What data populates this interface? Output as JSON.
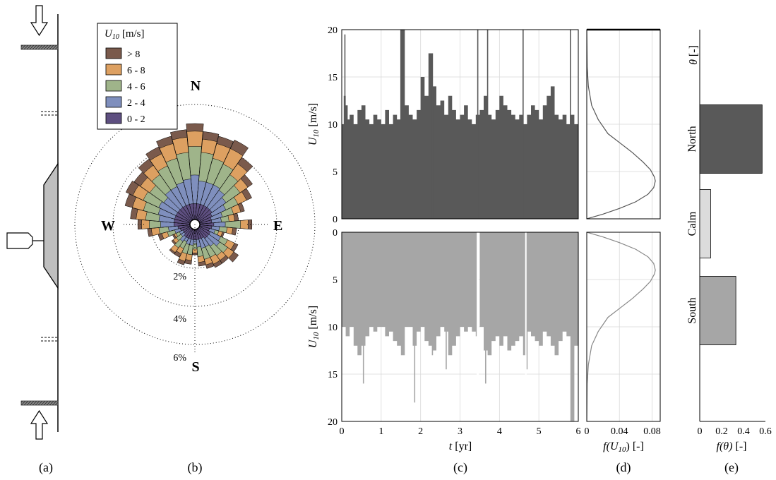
{
  "panel_labels": [
    "(a)",
    "(b)",
    "(c)",
    "(d)",
    "(e)"
  ],
  "colors": {
    "dark_series": "#595959",
    "light_series": "#a6a6a6",
    "bin_0_2": "#5e4f80",
    "bin_2_4": "#7f8fbd",
    "bin_4_6": "#9fb48a",
    "bin_6_8": "#dda061",
    "bin_gt8": "#7a5a4c",
    "north_bar": "#595959",
    "calm_bar": "#dcdcdc",
    "south_bar": "#a6a6a6"
  },
  "chart_data": [
    {
      "panel": "(a)",
      "type": "diagram",
      "icons": [
        "arrow-down-icon",
        "arrow-up-icon",
        "house-icon",
        "jetty-hatch-icon"
      ]
    },
    {
      "panel": "(b)",
      "type": "wind-rose",
      "legend_title": "U10 [m/s]",
      "legend_title_main": "U",
      "legend_title_sub": "10",
      "legend_title_unit": "[m/s]",
      "legend": [
        "> 8",
        "6 - 8",
        "4 - 6",
        "2 - 4",
        "0 - 2"
      ],
      "direction_labels": [
        "N",
        "E",
        "S",
        "W"
      ],
      "ring_labels": [
        "2%",
        "4%",
        "6%"
      ],
      "rings_percent": [
        2,
        4,
        6
      ],
      "sector_count": 36,
      "sectors_cumulative_percent": [
        [
          0.8,
          2.3,
          3.8,
          4.6,
          5.0
        ],
        [
          0.8,
          2.0,
          3.5,
          4.2,
          4.6
        ],
        [
          0.8,
          2.0,
          3.3,
          4.1,
          4.5
        ],
        [
          0.8,
          2.0,
          3.2,
          4.1,
          4.6
        ],
        [
          0.8,
          1.9,
          2.9,
          3.6,
          4.0
        ],
        [
          0.8,
          1.7,
          2.6,
          3.1,
          3.4
        ],
        [
          0.7,
          1.5,
          2.2,
          2.7,
          3.0
        ],
        [
          0.6,
          1.2,
          1.8,
          2.2,
          2.4
        ],
        [
          0.6,
          1.1,
          1.5,
          1.8,
          2.0
        ],
        [
          0.7,
          1.3,
          2.1,
          2.5,
          2.7
        ],
        [
          0.6,
          1.0,
          1.4,
          1.7,
          1.9
        ],
        [
          0.5,
          0.8,
          1.0,
          1.2,
          1.3
        ],
        [
          0.6,
          1.2,
          1.6,
          2.0,
          2.2
        ],
        [
          0.6,
          1.3,
          1.8,
          2.2,
          2.5
        ],
        [
          0.6,
          1.1,
          1.7,
          2.0,
          2.2
        ],
        [
          0.5,
          1.0,
          1.6,
          2.0,
          2.2
        ],
        [
          0.5,
          1.0,
          1.6,
          1.9,
          2.1
        ],
        [
          0.5,
          0.9,
          1.4,
          1.7,
          1.9
        ],
        [
          0.5,
          0.7,
          1.0,
          1.2,
          1.3
        ],
        [
          0.5,
          0.8,
          1.3,
          1.6,
          1.8
        ],
        [
          0.5,
          0.8,
          1.3,
          1.7,
          1.9
        ],
        [
          0.5,
          0.7,
          1.1,
          1.4,
          1.6
        ],
        [
          0.5,
          0.8,
          1.2,
          1.5,
          1.6
        ],
        [
          0.4,
          0.6,
          0.9,
          1.1,
          1.2
        ],
        [
          0.4,
          0.6,
          0.8,
          0.9,
          1.0
        ],
        [
          0.5,
          0.8,
          1.2,
          1.5,
          1.7
        ],
        [
          0.6,
          1.1,
          1.6,
          2.0,
          2.2
        ],
        [
          0.8,
          1.5,
          2.1,
          2.5,
          2.7
        ],
        [
          0.8,
          1.6,
          2.3,
          2.8,
          3.1
        ],
        [
          0.8,
          1.7,
          2.5,
          3.1,
          3.5
        ],
        [
          0.8,
          1.8,
          2.7,
          3.3,
          3.7
        ],
        [
          0.8,
          1.7,
          2.6,
          3.2,
          3.6
        ],
        [
          0.8,
          1.9,
          2.9,
          3.5,
          3.9
        ],
        [
          0.8,
          1.9,
          3.1,
          3.8,
          4.2
        ],
        [
          0.8,
          2.0,
          3.3,
          4.1,
          4.5
        ],
        [
          0.8,
          2.1,
          3.5,
          4.3,
          4.7
        ]
      ]
    },
    {
      "panel": "(c)",
      "type": "bar",
      "xlabel_var": "t",
      "xlabel_unit": "[yr]",
      "xlim": [
        0,
        6
      ],
      "xticks": [
        "0",
        "1",
        "2",
        "3",
        "4",
        "5",
        "6"
      ],
      "top": {
        "ylabel_main": "U",
        "ylabel_sub": "10",
        "ylabel_unit": "[m/s]",
        "ylim": [
          0,
          20
        ],
        "yticks": [
          "0",
          "5",
          "10",
          "15",
          "20"
        ],
        "envelope_x": [
          0,
          0.05,
          0.1,
          0.15,
          0.2,
          0.3,
          0.4,
          0.5,
          0.6,
          0.7,
          0.8,
          0.9,
          1.0,
          1.1,
          1.2,
          1.3,
          1.4,
          1.5,
          1.6,
          1.7,
          1.8,
          1.9,
          2.0,
          2.1,
          2.2,
          2.3,
          2.4,
          2.5,
          2.6,
          2.7,
          2.8,
          2.9,
          3.0,
          3.1,
          3.2,
          3.3,
          3.4,
          3.5,
          3.6,
          3.7,
          3.8,
          3.9,
          4.0,
          4.1,
          4.2,
          4.3,
          4.4,
          4.5,
          4.6,
          4.7,
          4.8,
          4.9,
          5.0,
          5.1,
          5.2,
          5.3,
          5.4,
          5.5,
          5.6,
          5.7,
          5.8,
          5.9,
          6.0
        ],
        "envelope_y": [
          10,
          13,
          12,
          10.5,
          11,
          10,
          11.5,
          12,
          10.5,
          10,
          11,
          10.5,
          10,
          11.5,
          10,
          11,
          10.5,
          20,
          12,
          11,
          10.5,
          11.5,
          15,
          13,
          17.5,
          14,
          12,
          12.5,
          11,
          13,
          11.5,
          10.5,
          11,
          12,
          10.5,
          10,
          11,
          11.5,
          13,
          11,
          10.5,
          11.5,
          13,
          12,
          11.5,
          11,
          10.5,
          11,
          10,
          11,
          12,
          11.5,
          10.5,
          12,
          13,
          14,
          11,
          10.5,
          11,
          10,
          11,
          10,
          13
        ],
        "spike_x": [
          0.08,
          1.5,
          2.3,
          3.45,
          3.7,
          4.6,
          5.8
        ],
        "spike_y": [
          19.5,
          20,
          17.5,
          20,
          20,
          20,
          20
        ]
      },
      "bottom": {
        "ylabel_main": "U",
        "ylabel_sub": "10",
        "ylabel_unit": "[m/s]",
        "ylim": [
          0,
          20
        ],
        "yticks": [
          "0",
          "5",
          "10",
          "15",
          "20"
        ],
        "envelope_x": [
          0,
          0.1,
          0.2,
          0.3,
          0.4,
          0.5,
          0.6,
          0.7,
          0.8,
          0.9,
          1.0,
          1.1,
          1.2,
          1.3,
          1.4,
          1.5,
          1.6,
          1.7,
          1.8,
          1.9,
          2.0,
          2.1,
          2.2,
          2.3,
          2.4,
          2.5,
          2.6,
          2.7,
          2.8,
          2.9,
          3.0,
          3.1,
          3.2,
          3.3,
          3.4,
          3.45,
          3.5,
          3.6,
          3.7,
          3.8,
          3.9,
          4.0,
          4.1,
          4.2,
          4.3,
          4.4,
          4.5,
          4.6,
          4.7,
          4.8,
          4.9,
          5.0,
          5.1,
          5.2,
          5.3,
          5.4,
          5.5,
          5.6,
          5.7,
          5.8,
          5.9,
          6.0
        ],
        "envelope_y": [
          10,
          11,
          10,
          12,
          13,
          12,
          11,
          10,
          10.5,
          10,
          10,
          11,
          10.5,
          11.5,
          12,
          13,
          10,
          10,
          12,
          10.5,
          10,
          11.5,
          12,
          12.5,
          11,
          10,
          10.5,
          13,
          12,
          11,
          10,
          10.5,
          10,
          10.5,
          11,
          0,
          10,
          12.5,
          13,
          11.5,
          11,
          12,
          11,
          12.5,
          12,
          11.5,
          11,
          13,
          10.5,
          11,
          11.5,
          12,
          10.5,
          11,
          12,
          13,
          11.5,
          10.5,
          11,
          20,
          12,
          11
        ],
        "spike_x": [
          0.55,
          1.85,
          2.3,
          2.65,
          3.65,
          4.7,
          5.85
        ],
        "spike_y": [
          16,
          18,
          13,
          14.5,
          16,
          14.5,
          20
        ]
      }
    },
    {
      "panel": "(d)",
      "type": "line",
      "xlabel_main": "f(U",
      "xlabel_sub": "10",
      "xlabel_unit": ") [-]",
      "xlim": [
        0,
        0.09
      ],
      "xticks": [
        "0",
        "0.04",
        "0.08"
      ],
      "x_values": [
        0,
        0.04,
        0.08
      ],
      "top_series": {
        "name": "",
        "x": [
          0,
          0.0005,
          0.002,
          0.006,
          0.014,
          0.026,
          0.041,
          0.056,
          0.069,
          0.078,
          0.083,
          0.084,
          0.082,
          0.075,
          0.06,
          0.04,
          0.02,
          0
        ],
        "y": [
          20,
          16,
          14,
          12,
          10.5,
          9,
          8,
          7,
          6,
          5.2,
          4.4,
          4,
          3.3,
          2.6,
          1.8,
          1.1,
          0.5,
          0
        ]
      },
      "bottom_series": {
        "name": "",
        "x": [
          0,
          0.02,
          0.04,
          0.06,
          0.075,
          0.082,
          0.084,
          0.083,
          0.078,
          0.069,
          0.056,
          0.041,
          0.026,
          0.014,
          0.006,
          0.002,
          0.0005,
          0
        ],
        "y": [
          0,
          0.5,
          1.1,
          1.8,
          2.6,
          3.3,
          4,
          4.4,
          5.2,
          6,
          7,
          8,
          9,
          10.5,
          12,
          14,
          16,
          20
        ]
      }
    },
    {
      "panel": "(e)",
      "type": "bar",
      "orientation": "horizontal",
      "title_var": "θ",
      "title_unit": "[-]",
      "categories": [
        "North",
        "Calm",
        "South"
      ],
      "values": [
        0.57,
        0.1,
        0.33
      ],
      "xlim": [
        0,
        0.6
      ],
      "xticks": [
        "0",
        "0.2",
        "0.4",
        "0.6"
      ],
      "xlabel_main": "f(θ)",
      "xlabel_unit": "[-]"
    }
  ]
}
